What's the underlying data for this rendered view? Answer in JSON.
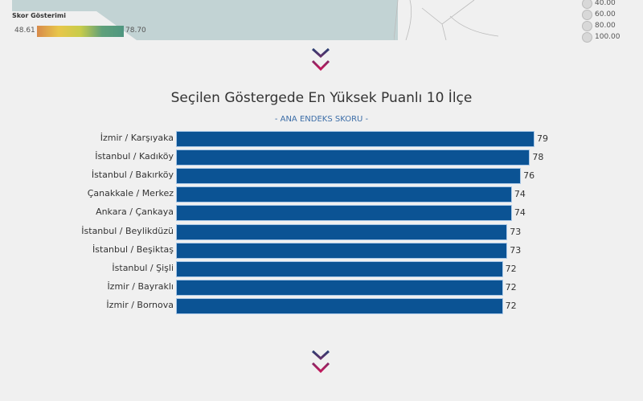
{
  "map_legend": {
    "title": "Skor Gösterimi",
    "min": "48.61",
    "max": "78.70",
    "size_labels": [
      "40.00",
      "60.00",
      "80.00",
      "100.00"
    ]
  },
  "colors": {
    "bar": "#0b5394",
    "subtitle": "#3d6ea8",
    "chevron_top": "#2c3e72",
    "chevron_bottom": "#c2185b"
  },
  "icons": [
    "double-chevron-down-icon"
  ],
  "chart_data": {
    "type": "bar",
    "orientation": "horizontal",
    "title": "Seçilen Göstergede En Yüksek Puanlı 10 İlçe",
    "subtitle": "- ANA ENDEKS SKORU -",
    "categories": [
      "İzmir / Karşıyaka",
      "İstanbul / Kadıköy",
      "İstanbul / Bakırköy",
      "Çanakkale / Merkez",
      "Ankara / Çankaya",
      "İstanbul / Beylikdüzü",
      "İstanbul / Beşiktaş",
      "İstanbul / Şişli",
      "İzmir / Bayraklı",
      "İzmir / Bornova"
    ],
    "values": [
      79,
      78,
      76,
      74,
      74,
      73,
      73,
      72,
      72,
      72
    ],
    "xlim": [
      0,
      79
    ]
  }
}
